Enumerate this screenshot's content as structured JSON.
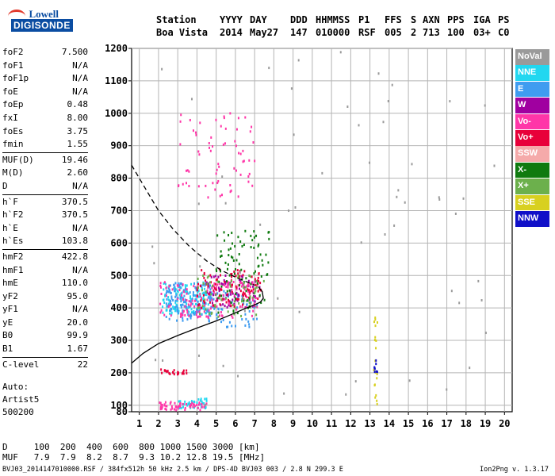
{
  "logo": {
    "line1": "Lowell",
    "line2": "DIGISONDE"
  },
  "header": {
    "row1": [
      "Station",
      "YYYY",
      "DAY",
      "DDD",
      "HHMMSS",
      "P1",
      "FFS",
      "S",
      "AXN",
      "PPS",
      "IGA",
      "PS"
    ],
    "row2": [
      "Boa Vista",
      "2014",
      "May27",
      "147",
      "010000",
      "RSF",
      "005",
      "2",
      "713",
      "100",
      "03+",
      "C0"
    ]
  },
  "params": [
    [
      {
        "k": "foF2",
        "v": "7.500"
      },
      {
        "k": "foF1",
        "v": "N/A"
      },
      {
        "k": "foF1p",
        "v": "N/A"
      },
      {
        "k": "foE",
        "v": "N/A"
      },
      {
        "k": "foEp",
        "v": "0.48"
      },
      {
        "k": "fxI",
        "v": "8.00"
      },
      {
        "k": "foEs",
        "v": "3.75"
      },
      {
        "k": "fmin",
        "v": "1.55"
      }
    ],
    [
      {
        "k": "MUF(D)",
        "v": "19.46"
      },
      {
        "k": "M(D)",
        "v": "2.60"
      },
      {
        "k": "D",
        "v": "N/A"
      }
    ],
    [
      {
        "k": "h`F",
        "v": "370.5"
      },
      {
        "k": "h`F2",
        "v": "370.5"
      },
      {
        "k": "h`E",
        "v": "N/A"
      },
      {
        "k": "h`Es",
        "v": "103.8"
      }
    ],
    [
      {
        "k": "hmF2",
        "v": "422.8"
      },
      {
        "k": "hmF1",
        "v": "N/A"
      },
      {
        "k": "hmE",
        "v": "110.0"
      },
      {
        "k": "yF2",
        "v": "95.0"
      },
      {
        "k": "yF1",
        "v": "N/A"
      },
      {
        "k": "yE",
        "v": "20.0"
      },
      {
        "k": "B0",
        "v": "99.9"
      },
      {
        "k": "B1",
        "v": "1.67"
      }
    ],
    [
      {
        "k": "C-level",
        "v": "22"
      }
    ]
  ],
  "auto": {
    "line1": "Auto:",
    "line2": "Artist5",
    "line3": "500200"
  },
  "dmuf": {
    "d_label": "D",
    "d_values": [
      "100",
      "200",
      "400",
      "600",
      "800",
      "1000",
      "1500",
      "3000"
    ],
    "d_unit": "[km]",
    "muf_label": "MUF",
    "muf_values": [
      "7.9",
      "7.9",
      "8.2",
      "8.7",
      "9.3",
      "10.2",
      "12.8",
      "19.5"
    ],
    "muf_unit": "[MHz]"
  },
  "footer": "BVJ03_2014147010000.RSF / 384fx512h 50 kHz 2.5 km / DPS-4D BVJ03 003 / 2.8 N 299.3 E",
  "version": "Ion2Png v. 1.3.17",
  "legend": [
    {
      "label": "NoVal",
      "color": "#9a9a9a"
    },
    {
      "label": "NNE",
      "color": "#22d7f0"
    },
    {
      "label": "E",
      "color": "#3f9cf0"
    },
    {
      "label": "W",
      "color": "#a000a0"
    },
    {
      "label": "Vo-",
      "color": "#ff36a8"
    },
    {
      "label": "Vo+",
      "color": "#e8003a"
    },
    {
      "label": "SSW",
      "color": "#f5aaaa"
    },
    {
      "label": "X-",
      "color": "#0f7a0f"
    },
    {
      "label": "X+",
      "color": "#6cb04c"
    },
    {
      "label": "SSE",
      "color": "#d8d020"
    },
    {
      "label": "NNW",
      "color": "#1010c8"
    }
  ],
  "chart_data": {
    "type": "scatter",
    "title": "",
    "xlabel": "",
    "ylabel": "",
    "xlim": [
      0.6,
      20.4
    ],
    "ylim": [
      80,
      1200
    ],
    "xticks": [
      1,
      2,
      3,
      4,
      5,
      6,
      7,
      8,
      9,
      10,
      11,
      12,
      13,
      14,
      15,
      16,
      17,
      18,
      19,
      20
    ],
    "yticks": [
      80,
      100,
      200,
      300,
      400,
      500,
      600,
      700,
      800,
      900,
      1000,
      1100,
      1200
    ],
    "grid": true,
    "legend_position": "right",
    "series": [
      {
        "name": "NNE",
        "color": "#22d7f0",
        "clusters": [
          {
            "x": [
              2.2,
              4.6
            ],
            "y": [
              380,
              480
            ],
            "n": 140
          },
          {
            "x": [
              3.0,
              4.6
            ],
            "y": [
              90,
              120
            ],
            "n": 40
          }
        ]
      },
      {
        "name": "E",
        "color": "#3f9cf0",
        "clusters": [
          {
            "x": [
              2.4,
              4.8
            ],
            "y": [
              360,
              480
            ],
            "n": 160
          },
          {
            "x": [
              4.5,
              7.2
            ],
            "y": [
              340,
              460
            ],
            "n": 60
          }
        ]
      },
      {
        "name": "W",
        "color": "#a000a0",
        "clusters": [
          {
            "x": [
              4.5,
              7.3
            ],
            "y": [
              400,
              500
            ],
            "n": 80
          }
        ]
      },
      {
        "name": "Vo-",
        "color": "#ff36a8",
        "clusters": [
          {
            "x": [
              2.0,
              7.2
            ],
            "y": [
              370,
              480
            ],
            "n": 150
          },
          {
            "x": [
              2.0,
              4.5
            ],
            "y": [
              85,
              110
            ],
            "n": 60
          },
          {
            "x": [
              3.0,
              7.0
            ],
            "y": [
              740,
              1000
            ],
            "n": 70
          }
        ]
      },
      {
        "name": "Vo+",
        "color": "#e8003a",
        "clusters": [
          {
            "x": [
              4.0,
              7.4
            ],
            "y": [
              400,
              520
            ],
            "n": 100
          },
          {
            "x": [
              2.0,
              3.5
            ],
            "y": [
              195,
              210
            ],
            "n": 25
          }
        ]
      },
      {
        "name": "X-",
        "color": "#0f7a0f",
        "clusters": [
          {
            "x": [
              5.0,
              7.8
            ],
            "y": [
              380,
              640
            ],
            "n": 90
          }
        ]
      },
      {
        "name": "X+",
        "color": "#6cb04c",
        "clusters": [
          {
            "x": [
              4.0,
              7.6
            ],
            "y": [
              370,
              500
            ],
            "n": 60
          }
        ]
      },
      {
        "name": "SSE",
        "color": "#d8d020",
        "clusters": [
          {
            "x": [
              13.2,
              13.4
            ],
            "y": [
              80,
              400
            ],
            "n": 20
          }
        ]
      },
      {
        "name": "NNW",
        "color": "#1010c8",
        "clusters": [
          {
            "x": [
              13.2,
              13.4
            ],
            "y": [
              200,
              240
            ],
            "n": 8
          }
        ]
      },
      {
        "name": "NoVal",
        "color": "#9a9a9a",
        "clusters": [
          {
            "x": [
              1.0,
              20.0
            ],
            "y": [
              80,
              1200
            ],
            "n": 60
          }
        ]
      }
    ],
    "profile_solid": {
      "x": [
        0.6,
        1.2,
        2.0,
        3.0,
        4.0,
        5.0,
        5.8,
        6.5,
        7.0,
        7.3,
        7.45,
        7.4,
        7.2
      ],
      "y": [
        230,
        260,
        290,
        315,
        338,
        360,
        380,
        398,
        410,
        418,
        430,
        450,
        465
      ]
    },
    "profile_dashed": {
      "x": [
        0.6,
        1.2,
        2.0,
        2.8,
        3.6,
        4.5,
        5.3,
        6.0,
        6.6,
        7.0
      ],
      "y": [
        840,
        780,
        700,
        640,
        590,
        545,
        515,
        495,
        480,
        470
      ]
    }
  }
}
